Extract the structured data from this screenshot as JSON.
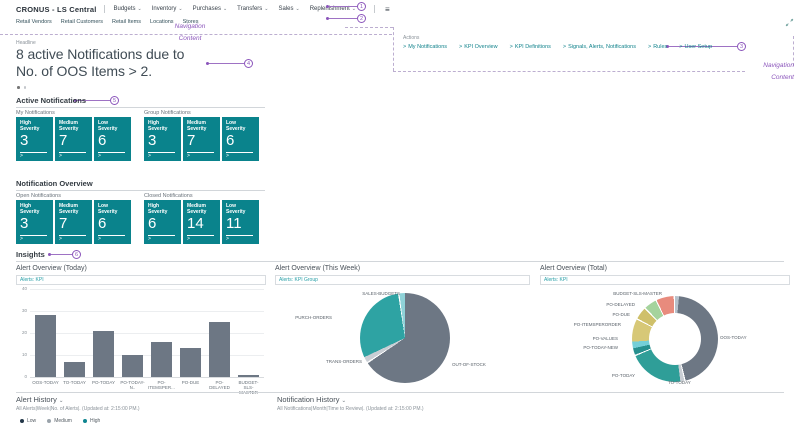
{
  "icons": {
    "chevron_down": "⌄",
    "chevron_right": ">",
    "hamburger": "≡"
  },
  "colors": {
    "tile": "#0a838c",
    "annotation": "#8b55bb",
    "bar": "#6d7784",
    "link": "#12838c"
  },
  "topnav": {
    "title": "CRONUS - LS Central",
    "menus": [
      "Budgets",
      "Inventory",
      "Purchases",
      "Transfers",
      "Sales",
      "Replenishment"
    ]
  },
  "subnav": [
    "Retail Vendors",
    "Retail Customers",
    "Retail Items",
    "Locations",
    "Stores"
  ],
  "annotations": {
    "navigation": "Navigation",
    "content": "Content",
    "markers": [
      "1",
      "2",
      "3",
      "4",
      "5",
      "6"
    ]
  },
  "actions": {
    "label": "Actions",
    "links": [
      "My Notifications",
      "KPI Overview",
      "KPI Definitions",
      "Signals, Alerts, Notifications",
      "Rules",
      "User Setup"
    ]
  },
  "headline": {
    "label": "Headline",
    "line1": "8 active Notifications due to",
    "line2": "No. of OOS Items > 2."
  },
  "active_notifications": {
    "title": "Active Notifications",
    "groups": [
      {
        "label": "My Notifications",
        "tiles": [
          {
            "label": "High Severity",
            "value": "3"
          },
          {
            "label": "Medium Severity",
            "value": "7"
          },
          {
            "label": "Low Severity",
            "value": "6"
          }
        ]
      },
      {
        "label": "Group Notifications",
        "tiles": [
          {
            "label": "High Severity",
            "value": "3"
          },
          {
            "label": "Medium Severity",
            "value": "7"
          },
          {
            "label": "Low Severity",
            "value": "6"
          }
        ]
      }
    ]
  },
  "notification_overview": {
    "title": "Notification Overview",
    "groups": [
      {
        "label": "Open Notifications",
        "tiles": [
          {
            "label": "High Severity",
            "value": "3"
          },
          {
            "label": "Medium Severity",
            "value": "7"
          },
          {
            "label": "Low Severity",
            "value": "6"
          }
        ]
      },
      {
        "label": "Closed Notifications",
        "tiles": [
          {
            "label": "High Severity",
            "value": "6"
          },
          {
            "label": "Medium Severity",
            "value": "14"
          },
          {
            "label": "Low Severity",
            "value": "11"
          }
        ]
      }
    ]
  },
  "insights": {
    "title": "Insights"
  },
  "chart_data": [
    {
      "type": "bar",
      "title": "Alert Overview (Today)",
      "filter": "Alerts: KPI",
      "categories": [
        "OOS-TODAY",
        "TO-TODAY",
        "PO-TODAY",
        "PO-TODAY-N..",
        "PO-ITEMSPER...",
        "PO-DUE",
        "PO-DELAYED",
        "BUDGET-SLS-MASTER"
      ],
      "values": [
        28,
        7,
        21,
        10,
        16,
        13,
        25,
        1
      ],
      "ylim": [
        0,
        40
      ],
      "yticks": [
        0,
        10,
        20,
        30,
        40
      ],
      "bar_color": "#6d7784",
      "grid": true
    },
    {
      "type": "pie",
      "title": "Alert Overview (This Week)",
      "filter": "Alerts: KPI Group",
      "segments": [
        {
          "label": "OUT-OF-STOCK",
          "value": 66,
          "color": "#6d7784"
        },
        {
          "label": "TRANS-ORDERS",
          "value": 2,
          "color": "#c9ced4"
        },
        {
          "label": "PURCH-ORDERS",
          "value": 30,
          "color": "#2ea3a3"
        },
        {
          "label": "SALES-BUDGETS",
          "value": 2,
          "color": "#8fd2d8"
        }
      ]
    },
    {
      "type": "donut",
      "title": "Alert Overview (Total)",
      "filter": "Alerts: KPI",
      "segments": [
        {
          "label": "",
          "value": 1.5,
          "color": "#b6c1cb"
        },
        {
          "label": "OOS-TODAY",
          "value": 45,
          "color": "#6d7784"
        },
        {
          "label": "TO-TODAY",
          "value": 1.5,
          "color": "#c9ced4"
        },
        {
          "label": "PO-TODAY",
          "value": 21,
          "color": "#2f9e98"
        },
        {
          "label": "PO-TODAY-NEW",
          "value": 2.5,
          "color": "#27908f"
        },
        {
          "label": "PO-VALUES",
          "value": 2.5,
          "color": "#74cfd8"
        },
        {
          "label": "PO-ITEMSPERORDER",
          "value": 9,
          "color": "#d7c877"
        },
        {
          "label": "PO-DUE",
          "value": 5,
          "color": "#cfc06a"
        },
        {
          "label": "PO-DELAYED",
          "value": 5,
          "color": "#a5d39d"
        },
        {
          "label": "BUDGET-SLS-MASTER",
          "value": 7,
          "color": "#e88b7d"
        }
      ]
    }
  ],
  "footer": {
    "alert_history": {
      "title": "Alert History",
      "subtitle": "All Alerts|Week|No. of Alerts|. (Updated at: 2:15:00 PM.)",
      "legend": [
        {
          "label": "Low",
          "color": "#233748"
        },
        {
          "label": "Medium",
          "color": "#9aa3ab"
        },
        {
          "label": "High",
          "color": "#0e8590"
        }
      ]
    },
    "notification_history": {
      "title": "Notification History",
      "subtitle": "All Notifications|Month|Time to Review|. (Updated at: 2:15:00 PM.)"
    }
  }
}
